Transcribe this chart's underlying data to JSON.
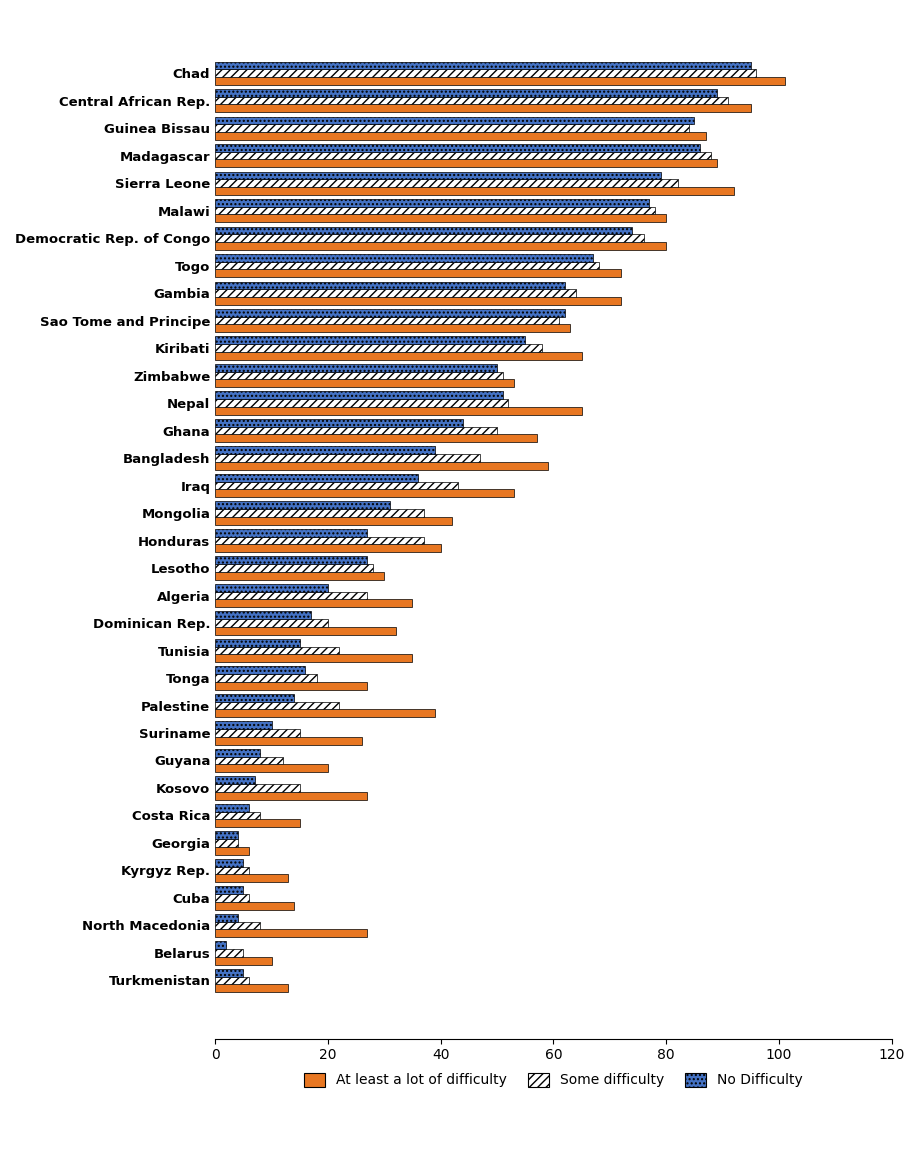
{
  "countries": [
    "Chad",
    "Central African Rep.",
    "Guinea Bissau",
    "Madagascar",
    "Sierra Leone",
    "Malawi",
    "Democratic Rep. of Congo",
    "Togo",
    "Gambia",
    "Sao Tome and Principe",
    "Kiribati",
    "Zimbabwe",
    "Nepal",
    "Ghana",
    "Bangladesh",
    "Iraq",
    "Mongolia",
    "Honduras",
    "Lesotho",
    "Algeria",
    "Dominican Rep.",
    "Tunisia",
    "Tonga",
    "Palestine",
    "Suriname",
    "Guyana",
    "Kosovo",
    "Costa Rica",
    "Georgia",
    "Kyrgyz Rep.",
    "Cuba",
    "North Macedonia",
    "Belarus",
    "Turkmenistan"
  ],
  "at_least_lot": [
    101,
    95,
    87,
    89,
    92,
    80,
    80,
    72,
    72,
    63,
    65,
    53,
    65,
    57,
    59,
    53,
    42,
    40,
    30,
    35,
    32,
    35,
    27,
    39,
    26,
    20,
    27,
    15,
    6,
    13,
    14,
    27,
    10,
    13
  ],
  "some_difficulty": [
    96,
    91,
    84,
    88,
    82,
    78,
    76,
    68,
    64,
    61,
    58,
    51,
    52,
    50,
    47,
    43,
    37,
    37,
    28,
    27,
    20,
    22,
    18,
    22,
    15,
    12,
    15,
    8,
    4,
    6,
    6,
    8,
    5,
    6
  ],
  "no_difficulty": [
    95,
    89,
    85,
    86,
    79,
    77,
    74,
    67,
    62,
    62,
    55,
    50,
    51,
    44,
    39,
    36,
    31,
    27,
    27,
    20,
    17,
    15,
    16,
    14,
    10,
    8,
    7,
    6,
    4,
    5,
    5,
    4,
    2,
    5
  ],
  "color_at_least": "#E87722",
  "color_some_face": "#FFFFFF",
  "color_some_hatch": "#E87722",
  "color_no_face": "#4472C4",
  "color_no_hatch": "#FFFFFF",
  "xlim": [
    0,
    120
  ],
  "xticks": [
    0,
    20,
    40,
    60,
    80,
    100,
    120
  ],
  "bar_height": 0.28,
  "legend_labels": [
    "At least a lot of difficulty",
    "Some difficulty",
    "No Difficulty"
  ]
}
